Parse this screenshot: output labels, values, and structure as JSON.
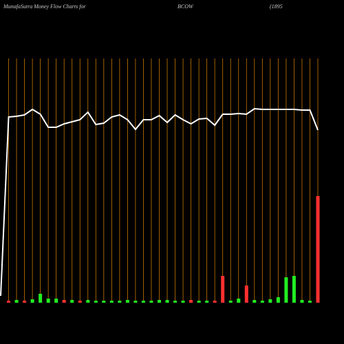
{
  "chart_data": {
    "type": "line",
    "title": "MunafaSutra  Money Flow  Charts for",
    "symbol": "BCOW",
    "subtitle": "(1895",
    "categories": [
      null,
      null,
      null,
      null,
      null,
      null,
      null,
      null,
      null,
      null,
      null,
      null,
      null,
      null,
      null,
      null,
      null,
      null,
      null,
      null,
      null,
      null,
      null,
      null,
      null,
      null,
      null,
      null,
      null,
      null,
      null,
      null,
      null,
      null,
      null,
      null,
      null,
      null,
      null,
      null,
      null
    ],
    "line_color": "#ffffff",
    "grid_color": "#c87800",
    "ylim": [
      0,
      440
    ],
    "series": [
      {
        "type": "line",
        "values": [
          10,
          270,
          271,
          273,
          281,
          274,
          255,
          255,
          260,
          263,
          266,
          277,
          259,
          261,
          270,
          273,
          266,
          252,
          266,
          266,
          272,
          262,
          273,
          266,
          260,
          267,
          268,
          258,
          274,
          274,
          275,
          274,
          282,
          281,
          281,
          281,
          281,
          281,
          280,
          280,
          251
        ]
      },
      {
        "type": "bar",
        "values": [
          null,
          3,
          4,
          3,
          5,
          13,
          6,
          6,
          4,
          4,
          3,
          4,
          3,
          3,
          3,
          3,
          4,
          3,
          3,
          3,
          4,
          4,
          3,
          3,
          4,
          3,
          3,
          3,
          39,
          3,
          6,
          25,
          4,
          3,
          5,
          8,
          37,
          39,
          4,
          3,
          155
        ],
        "colors": [
          null,
          "#ff3030",
          "#22ee22",
          "#ff3030",
          "#22ee22",
          "#22ee22",
          "#22ee22",
          "#22ee22",
          "#ff3030",
          "#22ee22",
          "#ff3030",
          "#22ee22",
          "#22ee22",
          "#22ee22",
          "#22ee22",
          "#22ee22",
          "#22ee22",
          "#22ee22",
          "#22ee22",
          "#22ee22",
          "#22ee22",
          "#22ee22",
          "#22ee22",
          "#22ee22",
          "#ff3030",
          "#22ee22",
          "#22ee22",
          "#ff3030",
          "#ff3030",
          "#22ee22",
          "#22ee22",
          "#ff3030",
          "#22ee22",
          "#22ee22",
          "#22ee22",
          "#22ee22",
          "#22ee22",
          "#22ee22",
          "#22ee22",
          "#22ee22",
          "#ff3030"
        ]
      }
    ]
  }
}
